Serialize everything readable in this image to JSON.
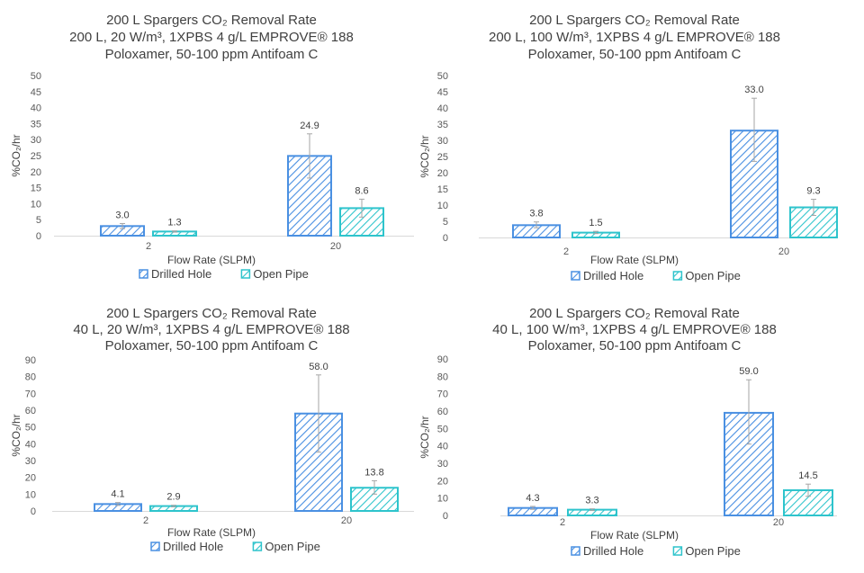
{
  "chart_data": [
    {
      "type": "bar",
      "title_lines": [
        "200 L Spargers CO₂ Removal Rate",
        "200 L, 20 W/m³, 1XPBS 4 g/L EMPROVE® 188",
        "Poloxamer, 50-100 ppm Antifoam C"
      ],
      "xlabel": "Flow Rate (SLPM)",
      "ylabel": "%CO₂/hr",
      "ylim": [
        0,
        50
      ],
      "yticks": [
        0,
        5,
        10,
        15,
        20,
        25,
        30,
        35,
        40,
        45,
        50
      ],
      "categories": [
        "2",
        "20"
      ],
      "series": [
        {
          "name": "Drilled Hole",
          "values": [
            3.0,
            24.9
          ],
          "labels": [
            "3.0",
            "24.9"
          ],
          "err_low": [
            2.2,
            18.0
          ],
          "err_high": [
            3.8,
            31.8
          ],
          "color": "#4a90e2"
        },
        {
          "name": "Open Pipe",
          "values": [
            1.3,
            8.6
          ],
          "labels": [
            "1.3",
            "8.6"
          ],
          "err_low": [
            1.1,
            5.8
          ],
          "err_high": [
            1.5,
            11.4
          ],
          "color": "#2ec4cc"
        }
      ]
    },
    {
      "type": "bar",
      "title_lines": [
        "200 L Spargers CO₂ Removal Rate",
        "200 L, 100 W/m³, 1XPBS 4 g/L EMPROVE® 188",
        "Poloxamer, 50-100 ppm Antifoam C"
      ],
      "xlabel": "Flow Rate (SLPM)",
      "ylabel": "%CO₂/hr",
      "ylim": [
        0,
        50
      ],
      "yticks": [
        0,
        5,
        10,
        15,
        20,
        25,
        30,
        35,
        40,
        45,
        50
      ],
      "categories": [
        "2",
        "20"
      ],
      "series": [
        {
          "name": "Drilled Hole",
          "values": [
            3.8,
            33.0
          ],
          "labels": [
            "3.8",
            "33.0"
          ],
          "err_low": [
            3.0,
            23.5
          ],
          "err_high": [
            4.8,
            43.0
          ],
          "color": "#4a90e2"
        },
        {
          "name": "Open Pipe",
          "values": [
            1.5,
            9.3
          ],
          "labels": [
            "1.5",
            "9.3"
          ],
          "err_low": [
            1.2,
            6.8
          ],
          "err_high": [
            1.9,
            11.8
          ],
          "color": "#2ec4cc"
        }
      ]
    },
    {
      "type": "bar",
      "title_lines": [
        "200 L Spargers CO₂ Removal Rate",
        "40 L, 20 W/m³, 1XPBS 4 g/L EMPROVE® 188",
        "Poloxamer, 50-100 ppm Antifoam C"
      ],
      "xlabel": "Flow Rate (SLPM)",
      "ylabel": "%CO₂/hr",
      "ylim": [
        0,
        90
      ],
      "yticks": [
        0,
        10,
        20,
        30,
        40,
        50,
        60,
        70,
        80,
        90
      ],
      "categories": [
        "2",
        "20"
      ],
      "series": [
        {
          "name": "Drilled Hole",
          "values": [
            4.1,
            58.0
          ],
          "labels": [
            "4.1",
            "58.0"
          ],
          "err_low": [
            3.3,
            35.0
          ],
          "err_high": [
            5.0,
            81.0
          ],
          "color": "#4a90e2"
        },
        {
          "name": "Open Pipe",
          "values": [
            2.9,
            13.8
          ],
          "labels": [
            "13.8",
            "2.9"
          ],
          "labels_ordered": [
            "2.9",
            "13.8"
          ],
          "err_low": [
            2.4,
            10.0
          ],
          "err_high": [
            3.4,
            18.0
          ],
          "color": "#2ec4cc"
        }
      ]
    },
    {
      "type": "bar",
      "title_lines": [
        "200 L Spargers CO₂ Removal Rate",
        "40 L, 100 W/m³, 1XPBS 4 g/L EMPROVE® 188",
        "Poloxamer, 50-100 ppm Antifoam C"
      ],
      "xlabel": "Flow Rate (SLPM)",
      "ylabel": "%CO₂/hr",
      "ylim": [
        0,
        90
      ],
      "yticks": [
        0,
        10,
        20,
        30,
        40,
        50,
        60,
        70,
        80,
        90
      ],
      "categories": [
        "2",
        "20"
      ],
      "series": [
        {
          "name": "Drilled Hole",
          "values": [
            4.3,
            59.0
          ],
          "labels": [
            "4.3",
            "59.0"
          ],
          "err_low": [
            3.5,
            41.0
          ],
          "err_high": [
            5.2,
            78.0
          ],
          "color": "#4a90e2"
        },
        {
          "name": "Open Pipe",
          "values": [
            3.3,
            14.5
          ],
          "labels": [
            "3.3",
            "14.5"
          ],
          "err_low": [
            2.8,
            11.0
          ],
          "err_high": [
            3.8,
            18.0
          ],
          "color": "#2ec4cc"
        }
      ]
    }
  ]
}
